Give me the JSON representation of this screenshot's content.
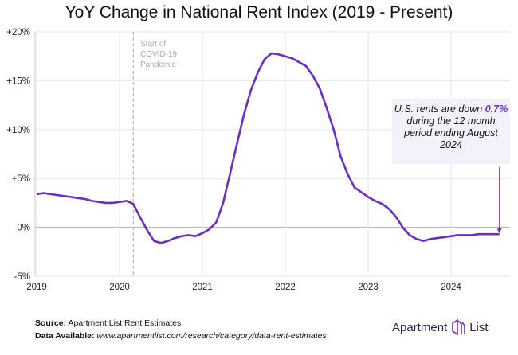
{
  "chart_data": {
    "type": "line",
    "title": "YoY Change in National Rent Index (2019 - Present)",
    "xlabel": "",
    "ylabel": "",
    "ylim": [
      -5,
      20
    ],
    "yticks": [
      "+20%",
      "+15%",
      "+10%",
      "+5%",
      "0%",
      "-5%"
    ],
    "ytick_values": [
      20,
      15,
      10,
      5,
      0,
      -5
    ],
    "xticks": [
      "2019",
      "2020",
      "2021",
      "2022",
      "2023",
      "2024"
    ],
    "x_start": "2019-01",
    "x_frequency": "monthly",
    "grid": true,
    "line_color": "#6a2fc2",
    "values": [
      3.4,
      3.5,
      3.4,
      3.3,
      3.2,
      3.1,
      3.0,
      2.9,
      2.7,
      2.6,
      2.5,
      2.5,
      2.6,
      2.7,
      2.4,
      1.0,
      -0.3,
      -1.4,
      -1.6,
      -1.4,
      -1.1,
      -0.9,
      -0.8,
      -0.9,
      -0.6,
      -0.2,
      0.5,
      2.5,
      5.5,
      8.5,
      11.5,
      14.0,
      15.8,
      17.2,
      17.8,
      17.7,
      17.5,
      17.3,
      16.9,
      16.5,
      15.5,
      14.2,
      12.2,
      10.0,
      7.3,
      5.5,
      4.1,
      3.6,
      3.1,
      2.7,
      2.4,
      1.9,
      1.1,
      0.0,
      -0.8,
      -1.2,
      -1.4,
      -1.2,
      -1.1,
      -1.0,
      -0.9,
      -0.8,
      -0.8,
      -0.8,
      -0.7,
      -0.7,
      -0.7,
      -0.7
    ],
    "annotations": {
      "covid": [
        "Start of",
        "COVID-19",
        "Pandemic"
      ],
      "covid_month": "2020-03",
      "note": {
        "pre": "U.S. rents are down ",
        "highlight": "0.7%",
        "post": " during the 12 month period ending August 2024"
      }
    }
  },
  "footer": {
    "source_label": "Source:",
    "source": "Apartment List Rent Estimates",
    "data_label": "Data Available:",
    "data_url": "www.apartmentlist.com/research/category/data-rent-estimates",
    "logo": "Apartment List"
  }
}
